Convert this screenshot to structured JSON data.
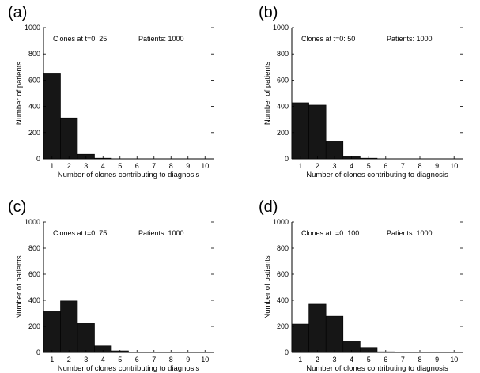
{
  "chart_data": [
    {
      "type": "bar",
      "panel_label": "(a)",
      "annotation_clones": "Clones at t=0: 25",
      "annotation_patients": "Patients: 1000",
      "xlabel": "Number of clones contributing to diagnosis",
      "ylabel": "Number of patients",
      "categories": [
        "1",
        "2",
        "3",
        "4",
        "5",
        "6",
        "7",
        "8",
        "9",
        "10"
      ],
      "values": [
        648,
        312,
        35,
        5,
        0,
        0,
        0,
        0,
        0,
        0
      ],
      "ylim": [
        0,
        1000
      ],
      "yticks": [
        0,
        200,
        400,
        600,
        800,
        1000
      ],
      "xticks": [
        1,
        2,
        3,
        4,
        5,
        6,
        7,
        8,
        9,
        10
      ],
      "bar_color": "#161616"
    },
    {
      "type": "bar",
      "panel_label": "(b)",
      "annotation_clones": "Clones at t=0: 50",
      "annotation_patients": "Patients: 1000",
      "xlabel": "Number of clones contributing to diagnosis",
      "ylabel": "Number of patients",
      "categories": [
        "1",
        "2",
        "3",
        "4",
        "5",
        "6",
        "7",
        "8",
        "9",
        "10"
      ],
      "values": [
        428,
        410,
        135,
        22,
        5,
        0,
        0,
        0,
        0,
        0
      ],
      "ylim": [
        0,
        1000
      ],
      "yticks": [
        0,
        200,
        400,
        600,
        800,
        1000
      ],
      "xticks": [
        1,
        2,
        3,
        4,
        5,
        6,
        7,
        8,
        9,
        10
      ],
      "bar_color": "#161616"
    },
    {
      "type": "bar",
      "panel_label": "(c)",
      "annotation_clones": "Clones at t=0: 75",
      "annotation_patients": "Patients: 1000",
      "xlabel": "Number of clones contributing to diagnosis",
      "ylabel": "Number of patients",
      "categories": [
        "1",
        "2",
        "3",
        "4",
        "5",
        "6",
        "7",
        "8",
        "9",
        "10"
      ],
      "values": [
        318,
        395,
        222,
        50,
        12,
        3,
        0,
        0,
        0,
        0
      ],
      "ylim": [
        0,
        1000
      ],
      "yticks": [
        0,
        200,
        400,
        600,
        800,
        1000
      ],
      "xticks": [
        1,
        2,
        3,
        4,
        5,
        6,
        7,
        8,
        9,
        10
      ],
      "bar_color": "#161616"
    },
    {
      "type": "bar",
      "panel_label": "(d)",
      "annotation_clones": "Clones at t=0: 100",
      "annotation_patients": "Patients: 1000",
      "xlabel": "Number of clones contributing to diagnosis",
      "ylabel": "Number of patients",
      "categories": [
        "1",
        "2",
        "3",
        "4",
        "5",
        "6",
        "7",
        "8",
        "9",
        "10"
      ],
      "values": [
        218,
        370,
        278,
        88,
        38,
        5,
        3,
        0,
        0,
        0
      ],
      "ylim": [
        0,
        1000
      ],
      "yticks": [
        0,
        200,
        400,
        600,
        800,
        1000
      ],
      "xticks": [
        1,
        2,
        3,
        4,
        5,
        6,
        7,
        8,
        9,
        10
      ],
      "bar_color": "#161616"
    }
  ]
}
